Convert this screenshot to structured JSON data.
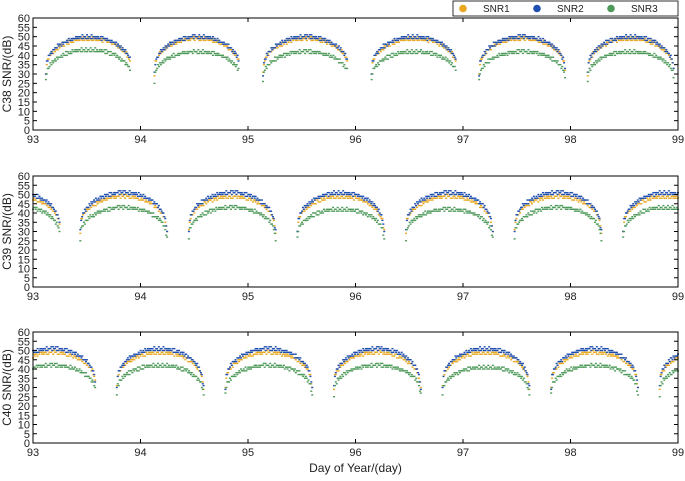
{
  "colors": {
    "SNR1": "#E8A820",
    "SNR2": "#1F4FB0",
    "SNR3": "#4E9A5A",
    "axis": "#000000"
  },
  "legend": [
    "SNR1",
    "SNR2",
    "SNR3"
  ],
  "xlabel": "Day of Year/(day)",
  "chart_data": [
    {
      "type": "scatter",
      "ylabel": "C38 SNR/(dB)",
      "xlim": [
        93,
        99
      ],
      "ylim": [
        0,
        60
      ],
      "xticks": [
        93,
        94,
        95,
        96,
        97,
        98,
        99
      ],
      "yticks": [
        0,
        5,
        10,
        15,
        20,
        25,
        30,
        35,
        40,
        45,
        50,
        55,
        60
      ],
      "passes": [
        {
          "start": 93.12,
          "end": 93.91,
          "snr1": 49,
          "snr2": 50,
          "snr3": 43
        },
        {
          "start": 94.13,
          "end": 94.92,
          "snr1": 49,
          "snr2": 50,
          "snr3": 42
        },
        {
          "start": 95.14,
          "end": 95.93,
          "snr1": 49,
          "snr2": 50,
          "snr3": 42
        },
        {
          "start": 96.15,
          "end": 96.94,
          "snr1": 49,
          "snr2": 50,
          "snr3": 42
        },
        {
          "start": 97.15,
          "end": 97.95,
          "snr1": 49,
          "snr2": 50,
          "snr3": 42
        },
        {
          "start": 98.16,
          "end": 98.96,
          "snr1": 49,
          "snr2": 50,
          "snr3": 42
        }
      ]
    },
    {
      "type": "scatter",
      "ylabel": "C39 SNR/(dB)",
      "xlim": [
        93,
        99
      ],
      "ylim": [
        0,
        60
      ],
      "xticks": [
        93,
        94,
        95,
        96,
        97,
        98,
        99
      ],
      "yticks": [
        0,
        5,
        10,
        15,
        20,
        25,
        30,
        35,
        40,
        45,
        50,
        55,
        60
      ],
      "passes": [
        {
          "start": 93.0,
          "end": 93.25,
          "snr1": 49,
          "snr2": 51,
          "snr3": 44
        },
        {
          "start": 93.44,
          "end": 94.25,
          "snr1": 49,
          "snr2": 51,
          "snr3": 43
        },
        {
          "start": 94.45,
          "end": 95.26,
          "snr1": 49,
          "snr2": 51,
          "snr3": 43
        },
        {
          "start": 95.46,
          "end": 96.27,
          "snr1": 49,
          "snr2": 51,
          "snr3": 42
        },
        {
          "start": 96.47,
          "end": 97.28,
          "snr1": 49,
          "snr2": 51,
          "snr3": 42
        },
        {
          "start": 97.48,
          "end": 98.29,
          "snr1": 49,
          "snr2": 51,
          "snr3": 43
        },
        {
          "start": 98.49,
          "end": 99.0,
          "snr1": 49,
          "snr2": 51,
          "snr3": 43
        }
      ]
    },
    {
      "type": "scatter",
      "ylabel": "C40 SNR/(dB)",
      "xlim": [
        93,
        99
      ],
      "ylim": [
        0,
        60
      ],
      "xticks": [
        93,
        94,
        95,
        96,
        97,
        98,
        99
      ],
      "yticks": [
        0,
        5,
        10,
        15,
        20,
        25,
        30,
        35,
        40,
        45,
        50,
        55,
        60
      ],
      "passes": [
        {
          "start": 93.0,
          "end": 93.58,
          "snr1": 49,
          "snr2": 51,
          "snr3": 42
        },
        {
          "start": 93.78,
          "end": 94.59,
          "snr1": 49,
          "snr2": 51,
          "snr3": 42
        },
        {
          "start": 94.79,
          "end": 95.6,
          "snr1": 49,
          "snr2": 51,
          "snr3": 42
        },
        {
          "start": 95.8,
          "end": 96.61,
          "snr1": 49,
          "snr2": 51,
          "snr3": 42
        },
        {
          "start": 96.81,
          "end": 97.62,
          "snr1": 49,
          "snr2": 51,
          "snr3": 41
        },
        {
          "start": 97.82,
          "end": 98.63,
          "snr1": 49,
          "snr2": 51,
          "snr3": 42
        },
        {
          "start": 98.83,
          "end": 99.0,
          "snr1": 49,
          "snr2": 51,
          "snr3": 42
        }
      ]
    }
  ]
}
